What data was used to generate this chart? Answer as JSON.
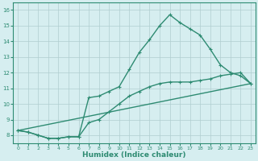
{
  "xlabel": "Humidex (Indice chaleur)",
  "ylabel": "",
  "xlim": [
    -0.5,
    23.5
  ],
  "ylim": [
    7.5,
    16.5
  ],
  "xticks": [
    0,
    1,
    2,
    3,
    4,
    5,
    6,
    7,
    8,
    9,
    10,
    11,
    12,
    13,
    14,
    15,
    16,
    17,
    18,
    19,
    20,
    21,
    22,
    23
  ],
  "yticks": [
    8,
    9,
    10,
    11,
    12,
    13,
    14,
    15,
    16
  ],
  "line_color": "#2e8b72",
  "bg_color": "#d6eef0",
  "grid_color": "#b0cdd0",
  "line1_x": [
    0,
    1,
    2,
    3,
    4,
    5,
    6,
    7,
    8,
    9,
    10,
    11,
    12,
    13,
    14,
    15,
    16,
    17,
    18,
    19,
    20,
    21,
    22,
    23
  ],
  "line1_y": [
    8.3,
    8.2,
    8.0,
    7.8,
    7.8,
    7.9,
    7.9,
    10.4,
    10.5,
    10.8,
    11.1,
    12.2,
    13.3,
    14.1,
    15.0,
    15.7,
    15.2,
    14.8,
    14.4,
    13.5,
    12.5,
    12.0,
    11.8,
    11.3
  ],
  "line2_x": [
    0,
    1,
    2,
    3,
    4,
    5,
    6,
    7,
    8,
    9,
    10,
    11,
    12,
    13,
    14,
    15,
    16,
    17,
    18,
    19,
    20,
    21,
    22,
    23
  ],
  "line2_y": [
    8.3,
    8.2,
    8.0,
    7.8,
    7.8,
    7.9,
    7.9,
    8.8,
    9.0,
    9.5,
    10.0,
    10.5,
    10.8,
    11.1,
    11.3,
    11.4,
    11.4,
    11.4,
    11.5,
    11.6,
    11.8,
    11.9,
    12.0,
    11.3
  ],
  "line3_x": [
    0,
    23
  ],
  "line3_y": [
    8.3,
    11.3
  ],
  "marker_size": 3.5,
  "linewidth": 1.0
}
